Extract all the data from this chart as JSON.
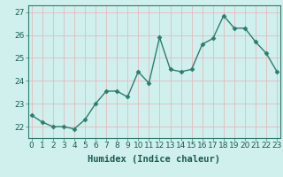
{
  "x": [
    0,
    1,
    2,
    3,
    4,
    5,
    6,
    7,
    8,
    9,
    10,
    11,
    12,
    13,
    14,
    15,
    16,
    17,
    18,
    19,
    20,
    21,
    22,
    23
  ],
  "y": [
    22.5,
    22.2,
    22.0,
    22.0,
    21.9,
    22.3,
    23.0,
    23.55,
    23.55,
    23.3,
    24.4,
    23.9,
    25.9,
    24.5,
    24.4,
    24.5,
    25.6,
    25.85,
    26.85,
    26.3,
    26.3,
    25.7,
    25.2,
    24.4
  ],
  "line_color": "#2d7d6e",
  "marker": "D",
  "marker_size": 2.5,
  "linewidth": 1.0,
  "bg_color": "#cff0ec",
  "grid_color_major": "#e8b8c0",
  "grid_color_minor": "#e8b8c0",
  "xlabel": "Humidex (Indice chaleur)",
  "ylim": [
    21.5,
    27.3
  ],
  "yticks": [
    22,
    23,
    24,
    25,
    26,
    27
  ],
  "xticks": [
    0,
    1,
    2,
    3,
    4,
    5,
    6,
    7,
    8,
    9,
    10,
    11,
    12,
    13,
    14,
    15,
    16,
    17,
    18,
    19,
    20,
    21,
    22,
    23
  ],
  "xlabel_fontsize": 7.5,
  "tick_fontsize": 6.5
}
